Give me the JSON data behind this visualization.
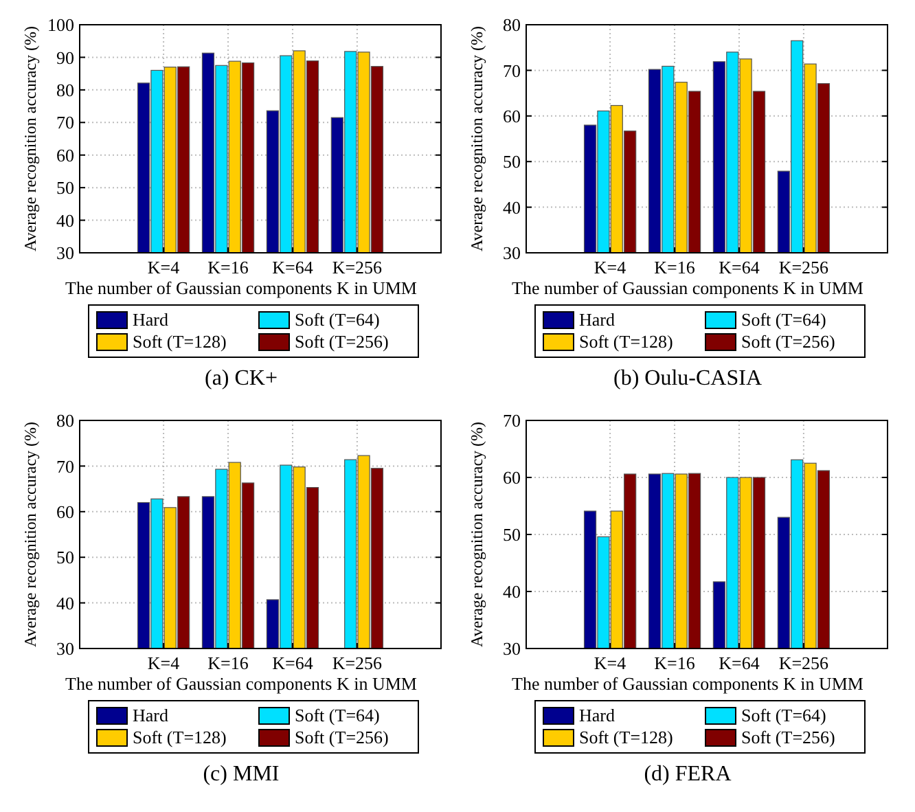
{
  "chart_data": [
    {
      "type": "bar",
      "title": "(a)  CK+",
      "xlabel": "The number of Gaussian components K in UMM",
      "ylabel": "Average recognition accuracy (%)",
      "categories": [
        "K=4",
        "K=16",
        "K=64",
        "K=256"
      ],
      "ylim": [
        30,
        100
      ],
      "yticks": [
        30,
        40,
        50,
        60,
        70,
        80,
        90,
        100
      ],
      "grid": true,
      "legend": "bottom",
      "series": [
        {
          "name": "Hard",
          "color": "#00008f",
          "values": [
            82.1,
            91.3,
            73.6,
            71.5
          ]
        },
        {
          "name": "Soft (T=64)",
          "color": "#00e0ff",
          "values": [
            86,
            87.5,
            90.5,
            91.8
          ]
        },
        {
          "name": "Soft (T=128)",
          "color": "#ffcc00",
          "values": [
            87,
            88.8,
            92,
            91.6
          ]
        },
        {
          "name": "Soft (T=256)",
          "color": "#800000",
          "values": [
            87.1,
            88.3,
            88.9,
            87.2
          ]
        }
      ]
    },
    {
      "type": "bar",
      "title": "(b)  Oulu-CASIA",
      "xlabel": "The number of Gaussian components K in UMM",
      "ylabel": "Average recognition accuracy (%)",
      "categories": [
        "K=4",
        "K=16",
        "K=64",
        "K=256"
      ],
      "ylim": [
        30,
        80
      ],
      "yticks": [
        30,
        40,
        50,
        60,
        70,
        80
      ],
      "grid": true,
      "legend": "bottom",
      "series": [
        {
          "name": "Hard",
          "color": "#00008f",
          "values": [
            58,
            70.2,
            71.9,
            47.9
          ]
        },
        {
          "name": "Soft (T=64)",
          "color": "#00e0ff",
          "values": [
            61.1,
            70.9,
            74,
            76.5
          ]
        },
        {
          "name": "Soft (T=128)",
          "color": "#ffcc00",
          "values": [
            62.3,
            67.4,
            72.5,
            71.4
          ]
        },
        {
          "name": "Soft (T=256)",
          "color": "#800000",
          "values": [
            56.7,
            65.4,
            65.4,
            67.1
          ]
        }
      ]
    },
    {
      "type": "bar",
      "title": "(c)  MMI",
      "xlabel": "The number of Gaussian components K in UMM",
      "ylabel": "Average recognition accuracy (%)",
      "categories": [
        "K=4",
        "K=16",
        "K=64",
        "K=256"
      ],
      "ylim": [
        30,
        80
      ],
      "yticks": [
        30,
        40,
        50,
        60,
        70,
        80
      ],
      "grid": true,
      "legend": "bottom",
      "series": [
        {
          "name": "Hard",
          "color": "#00008f",
          "values": [
            62,
            63.3,
            40.7,
            null
          ]
        },
        {
          "name": "Soft (T=64)",
          "color": "#00e0ff",
          "values": [
            62.8,
            69.3,
            70.2,
            71.4
          ]
        },
        {
          "name": "Soft (T=128)",
          "color": "#ffcc00",
          "values": [
            60.9,
            70.8,
            69.8,
            72.3
          ]
        },
        {
          "name": "Soft (T=256)",
          "color": "#800000",
          "values": [
            63.3,
            66.3,
            65.3,
            69.5
          ]
        }
      ]
    },
    {
      "type": "bar",
      "title": "(d)  FERA",
      "xlabel": "The number of Gaussian components K in UMM",
      "ylabel": "Average recognition accuracy (%)",
      "categories": [
        "K=4",
        "K=16",
        "K=64",
        "K=256"
      ],
      "ylim": [
        30,
        70
      ],
      "yticks": [
        30,
        40,
        50,
        60,
        70
      ],
      "grid": true,
      "legend": "bottom",
      "series": [
        {
          "name": "Hard",
          "color": "#00008f",
          "values": [
            54.1,
            60.6,
            41.7,
            53
          ]
        },
        {
          "name": "Soft (T=64)",
          "color": "#00e0ff",
          "values": [
            49.6,
            60.7,
            60,
            63.1
          ]
        },
        {
          "name": "Soft (T=128)",
          "color": "#ffcc00",
          "values": [
            54.1,
            60.6,
            60,
            62.5
          ]
        },
        {
          "name": "Soft (T=256)",
          "color": "#800000",
          "values": [
            60.6,
            60.7,
            60,
            61.2
          ]
        }
      ]
    }
  ]
}
